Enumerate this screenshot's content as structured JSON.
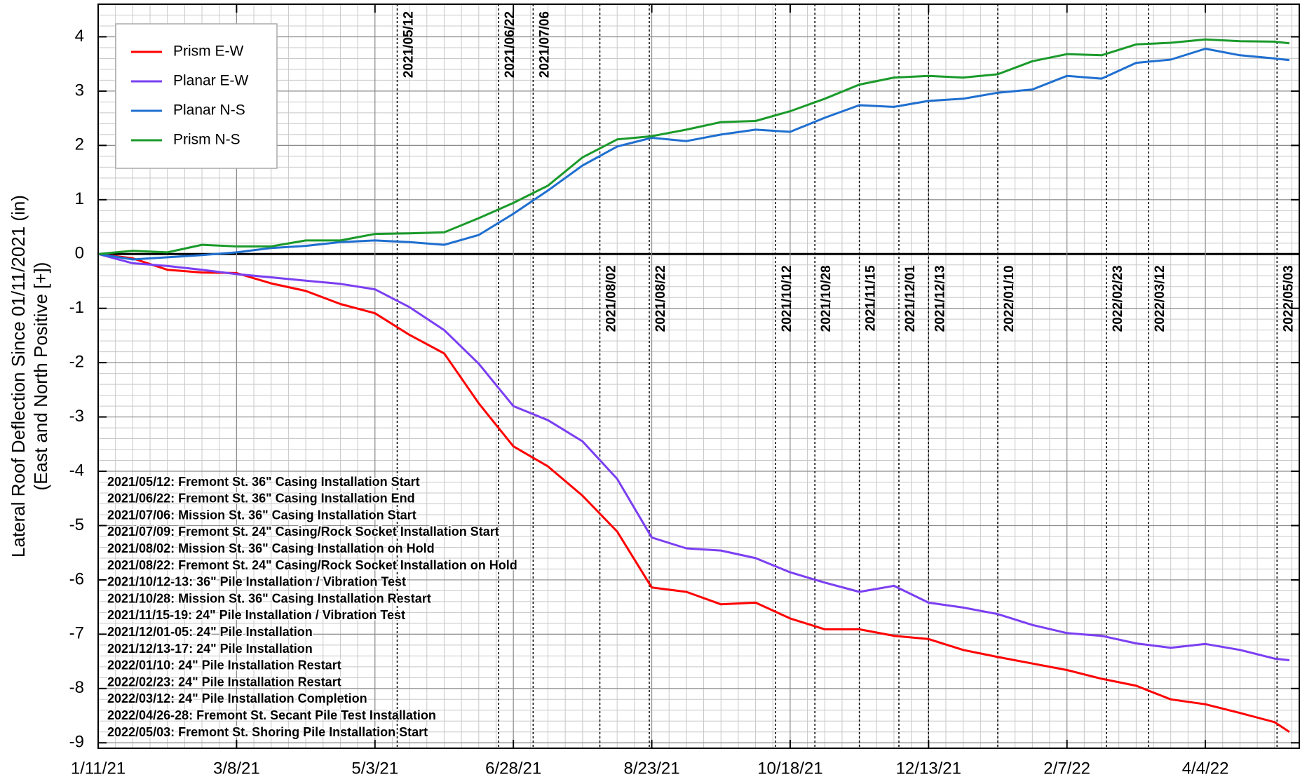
{
  "chart_data": {
    "type": "line",
    "ylabel": [
      "Lateral Roof Deflection Since 01/11/2021 (in)",
      "(East and North Positive [+])"
    ],
    "x": [
      "2021-01-11",
      "2021-01-25",
      "2021-02-08",
      "2021-02-22",
      "2021-03-08",
      "2021-03-22",
      "2021-04-05",
      "2021-04-19",
      "2021-05-03",
      "2021-05-17",
      "2021-05-31",
      "2021-06-14",
      "2021-06-28",
      "2021-07-12",
      "2021-07-26",
      "2021-08-09",
      "2021-08-23",
      "2021-09-06",
      "2021-09-20",
      "2021-10-04",
      "2021-10-18",
      "2021-11-01",
      "2021-11-15",
      "2021-11-29",
      "2021-12-13",
      "2021-12-27",
      "2022-01-10",
      "2022-01-24",
      "2022-02-07",
      "2022-02-21",
      "2022-03-07",
      "2022-03-21",
      "2022-04-04",
      "2022-04-18",
      "2022-05-02",
      "2022-05-08"
    ],
    "series": [
      {
        "name": "Prism E-W",
        "color": "#ff0000",
        "values": [
          0,
          -0.08,
          -0.29,
          -0.34,
          -0.35,
          -0.54,
          -0.68,
          -0.92,
          -1.09,
          -1.49,
          -1.83,
          -2.75,
          -3.54,
          -3.91,
          -4.45,
          -5.11,
          -6.14,
          -6.22,
          -6.45,
          -6.42,
          -6.71,
          -6.91,
          -6.91,
          -7.03,
          -7.09,
          -7.29,
          -7.42,
          -7.54,
          -7.66,
          -7.82,
          -7.95,
          -8.2,
          -8.29,
          -8.45,
          -8.62,
          -8.8
        ]
      },
      {
        "name": "Planar E-W",
        "color": "#7b3ff2",
        "values": [
          0,
          -0.17,
          -0.22,
          -0.29,
          -0.37,
          -0.43,
          -0.49,
          -0.55,
          -0.65,
          -0.98,
          -1.4,
          -2.02,
          -2.8,
          -3.06,
          -3.45,
          -4.14,
          -5.22,
          -5.42,
          -5.46,
          -5.6,
          -5.86,
          -6.05,
          -6.22,
          -6.11,
          -6.42,
          -6.51,
          -6.63,
          -6.83,
          -6.98,
          -7.03,
          -7.17,
          -7.25,
          -7.18,
          -7.29,
          -7.45,
          -7.48
        ]
      },
      {
        "name": "Planar N-S",
        "color": "#1f6fd0",
        "values": [
          0,
          -0.1,
          -0.06,
          -0.02,
          0.03,
          0.11,
          0.15,
          0.22,
          0.25,
          0.22,
          0.17,
          0.35,
          0.74,
          1.17,
          1.63,
          1.98,
          2.14,
          2.08,
          2.2,
          2.29,
          2.25,
          2.51,
          2.74,
          2.71,
          2.82,
          2.86,
          2.97,
          3.03,
          3.28,
          3.23,
          3.52,
          3.58,
          3.78,
          3.66,
          3.6,
          3.57
        ]
      },
      {
        "name": "Prism N-S",
        "color": "#1a9a2a",
        "values": [
          0,
          0.06,
          0.03,
          0.17,
          0.14,
          0.14,
          0.25,
          0.25,
          0.37,
          0.38,
          0.4,
          0.66,
          0.94,
          1.26,
          1.78,
          2.11,
          2.17,
          2.29,
          2.43,
          2.45,
          2.63,
          2.86,
          3.12,
          3.25,
          3.28,
          3.25,
          3.31,
          3.55,
          3.68,
          3.66,
          3.86,
          3.89,
          3.95,
          3.92,
          3.91,
          3.88
        ]
      }
    ],
    "xlim": [
      "2021-01-11",
      "2022-05-12"
    ],
    "xticks": [
      {
        "value": "2021-01-11",
        "label": "1/11/21"
      },
      {
        "value": "2021-03-08",
        "label": "3/8/21"
      },
      {
        "value": "2021-05-03",
        "label": "5/3/21"
      },
      {
        "value": "2021-06-28",
        "label": "6/28/21"
      },
      {
        "value": "2021-08-23",
        "label": "8/23/21"
      },
      {
        "value": "2021-10-18",
        "label": "10/18/21"
      },
      {
        "value": "2021-12-13",
        "label": "12/13/21"
      },
      {
        "value": "2022-02-07",
        "label": "2/7/22"
      },
      {
        "value": "2022-04-04",
        "label": "4/4/22"
      }
    ],
    "ylim": [
      -9.1,
      4.6
    ],
    "yticks": [
      -9,
      -8,
      -7,
      -6,
      -5,
      -4,
      -3,
      -2,
      -1,
      0,
      1,
      2,
      3,
      4
    ],
    "grid": true,
    "x_minor_days": 7,
    "y_minor_step": 0.2,
    "legend": "upper left",
    "events": [
      {
        "x": "2021-05-12",
        "label": "2021/05/12",
        "position": "top"
      },
      {
        "x": "2021-06-22",
        "label": "2021/06/22",
        "position": "top"
      },
      {
        "x": "2021-07-06",
        "label": "2021/07/06",
        "position": "top"
      },
      {
        "x": "2021-08-02",
        "label": "2021/08/02",
        "position": "bottom"
      },
      {
        "x": "2021-08-22",
        "label": "2021/08/22",
        "position": "bottom"
      },
      {
        "x": "2021-10-12",
        "label": "2021/10/12",
        "position": "bottom"
      },
      {
        "x": "2021-10-28",
        "label": "2021/10/28",
        "position": "bottom"
      },
      {
        "x": "2021-11-15",
        "label": "2021/11/15",
        "position": "bottom"
      },
      {
        "x": "2021-12-01",
        "label": "2021/12/01",
        "position": "bottom"
      },
      {
        "x": "2021-12-13",
        "label": "2021/12/13",
        "position": "bottom"
      },
      {
        "x": "2022-01-10",
        "label": "2022/01/10",
        "position": "bottom"
      },
      {
        "x": "2022-02-23",
        "label": "2022/02/23",
        "position": "bottom"
      },
      {
        "x": "2022-03-12",
        "label": "2022/03/12",
        "position": "bottom"
      },
      {
        "x": "2022-05-03",
        "label": "2022/05/03",
        "position": "bottom"
      }
    ],
    "notes": [
      "2021/05/12: Fremont St. 36\" Casing Installation Start",
      "2021/06/22: Fremont St. 36\" Casing Installation End",
      "2021/07/06: Mission St.  36\" Casing Installation Start",
      "2021/07/09: Fremont St. 24\" Casing/Rock Socket Installation Start",
      "2021/08/02: Mission St.  36\" Casing Installation on Hold",
      "2021/08/22: Fremont St. 24\" Casing/Rock Socket Installation on Hold",
      "2021/10/12-13: 36\" Pile Installation / Vibration Test",
      "2021/10/28: Mission St.  36\" Casing Installation Restart",
      "2021/11/15-19: 24\" Pile Installation / Vibration Test",
      "2021/12/01-05: 24\" Pile Installation",
      "2021/12/13-17: 24\" Pile Installation",
      "2022/01/10: 24\" Pile Installation Restart",
      "2022/02/23: 24\" Pile Installation Restart",
      "2022/03/12: 24\" Pile Installation Completion",
      "2022/04/26-28: Fremont St. Secant Pile Test Installation",
      "2022/05/03: Fremont St. Shoring Pile Installation Start"
    ]
  }
}
